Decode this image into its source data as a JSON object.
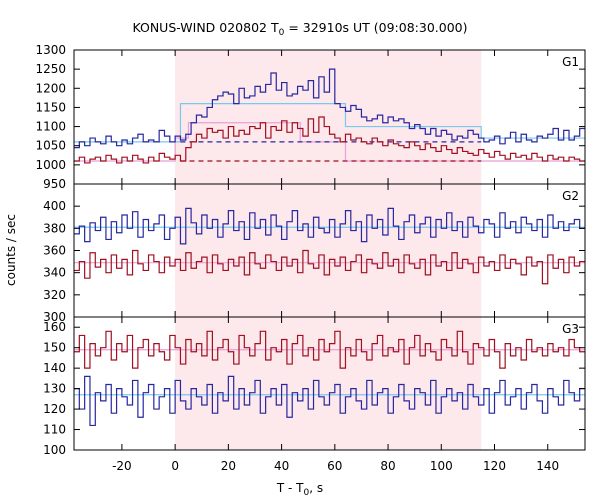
{
  "chart_data": {
    "type": "line",
    "title_main": "KONUS-WIND 020802 T",
    "title_sub": "0",
    "title_rest": " = 32910s UT (09:08:30.000)",
    "xlabel_main": "T - T",
    "xlabel_sub": "0",
    "xlabel_rest": ", s",
    "ylabel": "counts / sec",
    "xlim": [
      -38,
      154
    ],
    "x_ticks": [
      "-20",
      "0",
      "20",
      "40",
      "60",
      "80",
      "100",
      "120",
      "140"
    ],
    "x_tick_values": [
      -20,
      0,
      20,
      40,
      60,
      80,
      100,
      120,
      140
    ],
    "shaded_interval": [
      0,
      115
    ],
    "colors": {
      "shade": "#fde8ec",
      "blue": "#2727a0",
      "red": "#a01020",
      "light_blue": "#78c8f0",
      "pink": "#e8a0d8",
      "dash_blue": "#2727a0",
      "dash_red": "#a01020"
    },
    "panels": [
      {
        "name": "G1",
        "ylim": [
          950,
          1300
        ],
        "y_ticks": [
          "950",
          "1000",
          "1050",
          "1100",
          "1150",
          "1200",
          "1250",
          "1300"
        ],
        "y_tick_values": [
          950,
          1000,
          1050,
          1100,
          1150,
          1200,
          1250,
          1300
        ],
        "series": [
          {
            "color_key": "blue",
            "x_start": -38,
            "step": 2,
            "values": [
              1045,
              1060,
              1050,
              1070,
              1060,
              1055,
              1075,
              1060,
              1050,
              1065,
              1055,
              1070,
              1080,
              1060,
              1065,
              1060,
              1090,
              1075,
              1060,
              1075,
              1065,
              1080,
              1110,
              1130,
              1125,
              1150,
              1170,
              1180,
              1190,
              1185,
              1160,
              1200,
              1175,
              1180,
              1205,
              1190,
              1210,
              1240,
              1195,
              1215,
              1180,
              1185,
              1205,
              1195,
              1220,
              1175,
              1230,
              1190,
              1250,
              1160,
              1150,
              1140,
              1155,
              1145,
              1125,
              1115,
              1120,
              1130,
              1110,
              1125,
              1115,
              1120,
              1110,
              1095,
              1105,
              1095,
              1080,
              1095,
              1075,
              1090,
              1080,
              1065,
              1075,
              1070,
              1090,
              1080,
              1070,
              1060,
              1065,
              1075,
              1055,
              1070,
              1085,
              1060,
              1080,
              1065,
              1060,
              1075,
              1070,
              1080,
              1095,
              1065,
              1090,
              1065,
              1075,
              1095
            ]
          },
          {
            "color_key": "red",
            "x_start": -38,
            "step": 2,
            "values": [
              1010,
              1020,
              1005,
              1015,
              1020,
              1010,
              1025,
              1015,
              1005,
              1020,
              1010,
              1025,
              1015,
              1005,
              1020,
              1010,
              1030,
              1020,
              1015,
              1025,
              1010,
              1045,
              1060,
              1080,
              1070,
              1095,
              1085,
              1090,
              1070,
              1100,
              1075,
              1090,
              1080,
              1100,
              1095,
              1110,
              1070,
              1100,
              1090,
              1115,
              1085,
              1110,
              1095,
              1075,
              1120,
              1085,
              1125,
              1100,
              1080,
              1070,
              1060,
              1080,
              1065,
              1070,
              1060,
              1055,
              1070,
              1060,
              1050,
              1065,
              1055,
              1050,
              1045,
              1060,
              1050,
              1040,
              1055,
              1045,
              1035,
              1050,
              1040,
              1030,
              1045,
              1035,
              1030,
              1025,
              1040,
              1030,
              1020,
              1035,
              1025,
              1015,
              1030,
              1020,
              1025,
              1015,
              1030,
              1020,
              1010,
              1025,
              1015,
              1020,
              1010,
              1020,
              1015,
              1010
            ]
          }
        ],
        "steps": [
          {
            "color_key": "light_blue",
            "x": [
              -38,
              2,
              2,
              64,
              64,
              115,
              115,
              154
            ],
            "y": [
              1060,
              1060,
              1160,
              1160,
              1100,
              1100,
              1070,
              1070
            ]
          },
          {
            "color_key": "pink",
            "x": [
              -38,
              0,
              0,
              5,
              5,
              47,
              47,
              64,
              64,
              154
            ],
            "y": [
              1010,
              1010,
              1070,
              1070,
              1110,
              1110,
              1060,
              1060,
              1010,
              1010
            ]
          }
        ],
        "dashed": [
          {
            "color_key": "dash_blue",
            "x": [
              2,
              115
            ],
            "y": 1060
          },
          {
            "color_key": "dash_red",
            "x": [
              2,
              115
            ],
            "y": 1010
          }
        ]
      },
      {
        "name": "G2",
        "ylim": [
          300,
          420
        ],
        "y_ticks": [
          "300",
          "320",
          "340",
          "360",
          "380",
          "400"
        ],
        "y_tick_values": [
          300,
          320,
          340,
          360,
          380,
          400
        ],
        "series": [
          {
            "color_key": "blue",
            "x_start": -38,
            "step": 2,
            "values": [
              375,
              382,
              368,
              385,
              378,
              390,
              370,
              386,
              376,
              392,
              380,
              395,
              372,
              388,
              378,
              384,
              392,
              370,
              380,
              390,
              366,
              398,
              385,
              375,
              392,
              380,
              388,
              372,
              384,
              396,
              378,
              386,
              370,
              394,
              380,
              388,
              374,
              392,
              382,
              370,
              386,
              396,
              378,
              384,
              372,
              390,
              380,
              376,
              388,
              372,
              384,
              396,
              378,
              386,
              368,
              392,
              380,
              388,
              374,
              398,
              382,
              370,
              386,
              392,
              376,
              384,
              390,
              372,
              388,
              380,
              394,
              378,
              386,
              372,
              390,
              382,
              376,
              388,
              384,
              372,
              394,
              380,
              386,
              376,
              390,
              384,
              378,
              388,
              372,
              392,
              380,
              386,
              378,
              384,
              388,
              380
            ]
          },
          {
            "color_key": "red",
            "x_start": -38,
            "step": 2,
            "values": [
              342,
              350,
              335,
              358,
              345,
              352,
              340,
              356,
              344,
              352,
              338,
              360,
              348,
              342,
              356,
              350,
              340,
              354,
              346,
              352,
              342,
              358,
              344,
              350,
              354,
              340,
              356,
              348,
              342,
              352,
              346,
              354,
              338,
              358,
              348,
              344,
              356,
              350,
              342,
              354,
              346,
              352,
              340,
              360,
              348,
              344,
              356,
              338,
              352,
              346,
              354,
              342,
              350,
              356,
              340,
              352,
              348,
              344,
              358,
              346,
              352,
              340,
              356,
              348,
              344,
              352,
              338,
              356,
              346,
              350,
              342,
              358,
              344,
              352,
              348,
              340,
              354,
              346,
              350,
              342,
              356,
              344,
              352,
              348,
              338,
              354,
              346,
              350,
              330,
              356,
              344,
              352,
              340,
              354,
              346,
              350
            ]
          }
        ],
        "steps": [
          {
            "color_key": "light_blue",
            "x": [
              -38,
              154
            ],
            "y": [
              381,
              381
            ]
          },
          {
            "color_key": "pink",
            "x": [
              -38,
              154
            ],
            "y": [
              349,
              349
            ]
          }
        ],
        "dashed": []
      },
      {
        "name": "G3",
        "ylim": [
          100,
          165
        ],
        "y_ticks": [
          "100",
          "110",
          "120",
          "130",
          "140",
          "150",
          "160"
        ],
        "y_tick_values": [
          100,
          110,
          120,
          130,
          140,
          150,
          160
        ],
        "series": [
          {
            "color_key": "blue",
            "x_start": -38,
            "step": 2,
            "values": [
              130,
              120,
              136,
              112,
              128,
              124,
              132,
              118,
              130,
              126,
              122,
              134,
              116,
              128,
              132,
              120,
              126,
              130,
              118,
              134,
              124,
              120,
              130,
              126,
              122,
              132,
              118,
              128,
              124,
              136,
              120,
              130,
              122,
              128,
              134,
              118,
              126,
              130,
              122,
              132,
              116,
              128,
              124,
              130,
              120,
              134,
              126,
              122,
              128,
              132,
              118,
              126,
              130,
              124,
              120,
              134,
              122,
              128,
              130,
              118,
              126,
              132,
              124,
              120,
              130,
              128,
              122,
              134,
              118,
              126,
              130,
              124,
              128,
              120,
              132,
              126,
              122,
              130,
              118,
              128,
              134,
              122,
              126,
              130,
              120,
              128,
              132,
              124,
              118,
              130,
              126,
              122,
              134,
              128,
              124,
              130
            ]
          },
          {
            "color_key": "red",
            "x_start": -38,
            "step": 2,
            "values": [
              148,
              156,
              140,
              152,
              146,
              150,
              158,
              144,
              152,
              148,
              156,
              140,
              150,
              154,
              146,
              152,
              148,
              144,
              156,
              150,
              142,
              154,
              148,
              152,
              146,
              158,
              144,
              150,
              154,
              148,
              142,
              156,
              150,
              146,
              152,
              158,
              144,
              150,
              148,
              154,
              142,
              152,
              156,
              146,
              150,
              144,
              154,
              148,
              152,
              158,
              140,
              150,
              146,
              154,
              148,
              144,
              152,
              156,
              146,
              150,
              148,
              154,
              142,
              150,
              156,
              146,
              152,
              148,
              144,
              154,
              150,
              146,
              158,
              148,
              142,
              152,
              150,
              146,
              154,
              148,
              140,
              152,
              146,
              150,
              144,
              154,
              148,
              150,
              146,
              152,
              148,
              150,
              146,
              154,
              150,
              148
            ]
          }
        ],
        "steps": [
          {
            "color_key": "light_blue",
            "x": [
              -38,
              154
            ],
            "y": [
              127,
              127
            ]
          },
          {
            "color_key": "pink",
            "x": [
              -38,
              154
            ],
            "y": [
              149,
              149
            ]
          }
        ],
        "dashed": []
      }
    ]
  }
}
